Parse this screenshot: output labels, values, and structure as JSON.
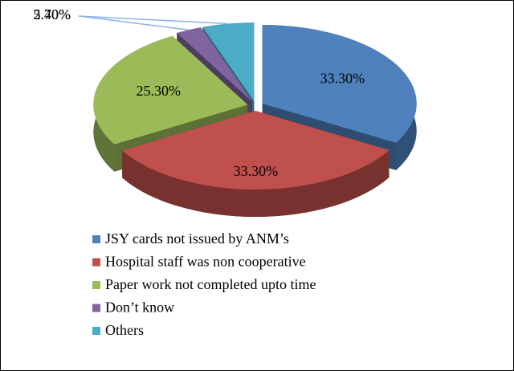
{
  "chart_data": {
    "type": "pie",
    "categories": [
      "JSY cards not issued by ANM’s",
      "Hospital staff was non cooperative",
      "Paper work not completed upto time",
      "Don’t know",
      "Others"
    ],
    "values": [
      33.3,
      33.3,
      25.3,
      2.7,
      5.4
    ],
    "value_labels": [
      "33.30%",
      "33.30%",
      "25.30%",
      "2.70%",
      "5.40%"
    ],
    "colors": [
      "#4f81bd",
      "#c0504d",
      "#9bbb59",
      "#8064a2",
      "#4bacc6"
    ],
    "legend": "bottom"
  }
}
